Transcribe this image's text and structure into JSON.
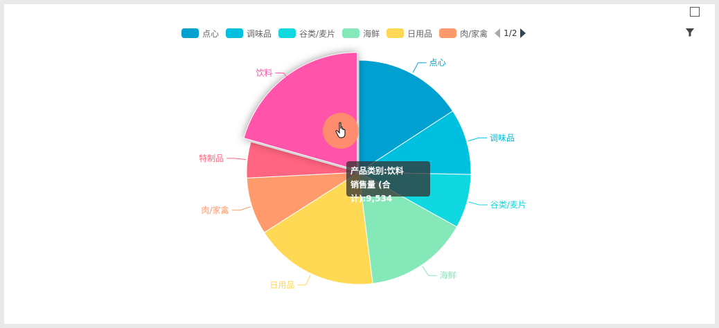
{
  "chart_data": {
    "type": "pie",
    "categories": [
      "点心",
      "调味品",
      "谷类/麦片",
      "海鲜",
      "日用品",
      "肉/家禽",
      "特制品",
      "饮料"
    ],
    "values": [
      7300,
      4400,
      3600,
      6900,
      8300,
      3800,
      2400,
      9534
    ],
    "colors": [
      "#00a0d0",
      "#00c0e0",
      "#10d8e0",
      "#84e8b8",
      "#ffd854",
      "#ff9a6c",
      "#ff6480",
      "#ff54aa"
    ],
    "legend_visible": [
      "点心",
      "调味品",
      "谷类/麦片",
      "海鲜",
      "日用品",
      "肉/家禽"
    ],
    "legend_labels": [
      "点心",
      "调味品",
      "谷类/麦片",
      "海鲜",
      "日用品",
      "肉/家禽"
    ],
    "legend_placement": "top"
  },
  "legend": {
    "page": "1/2"
  },
  "tooltip": {
    "line1": "产品类别:饮料",
    "line2": "销售量 (合计):9,534"
  }
}
